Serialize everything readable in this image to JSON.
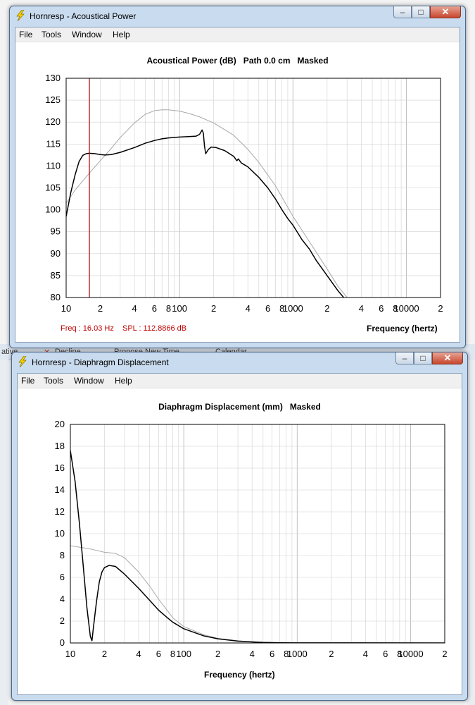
{
  "background": {
    "strip": [
      "ative",
      "Decline",
      "Propose New Time",
      "Calendar"
    ]
  },
  "colors": {
    "marker": "#b00000",
    "readout": "#c00000",
    "measured": "#000000",
    "reference": "#a8a8a8",
    "grid": "#d0d0d0"
  },
  "windows": [
    {
      "title": "Hornresp - Acoustical Power",
      "menu": [
        "File",
        "Tools",
        "Window",
        "Help"
      ],
      "chart_title": "Acoustical Power (dB)   Path 0.0 cm   Masked",
      "readout_freq": "Freq : 16.03 Hz",
      "readout_spl": "SPL : 112.8866 dB",
      "xlabel": "Frequency (hertz)"
    },
    {
      "title": "Hornresp - Diaphragm Displacement",
      "menu": [
        "File",
        "Tools",
        "Window",
        "Help"
      ],
      "chart_title": "Diaphragm Displacement (mm)   Masked",
      "xlabel": "Frequency (hertz)"
    }
  ],
  "chart_data": [
    {
      "type": "line",
      "title": "Acoustical Power (dB)   Path 0.0 cm   Masked",
      "xlabel": "Frequency (hertz)",
      "ylabel": "",
      "xscale": "log",
      "xlim": [
        10,
        20000
      ],
      "ylim": [
        80,
        130
      ],
      "yticks": [
        80,
        85,
        90,
        95,
        100,
        105,
        110,
        115,
        120,
        125,
        130
      ],
      "xtick_values": [
        10,
        20,
        40,
        60,
        80,
        100,
        200,
        400,
        600,
        800,
        1000,
        2000,
        4000,
        6000,
        8000,
        10000,
        20000
      ],
      "xtick_labels": [
        "10",
        "2",
        "4",
        "6",
        "8",
        "100",
        "2",
        "4",
        "6",
        "8",
        "1000",
        "2",
        "4",
        "6",
        "8",
        "10000",
        "2"
      ],
      "grid": true,
      "marker_x": 16.03,
      "series": [
        {
          "style": "black",
          "points": [
            [
              10,
              98.5
            ],
            [
              11,
              104
            ],
            [
              12,
              108
            ],
            [
              13,
              111
            ],
            [
              14,
              112.4
            ],
            [
              15,
              112.8
            ],
            [
              16,
              112.9
            ],
            [
              18,
              112.8
            ],
            [
              20,
              112.6
            ],
            [
              22,
              112.5
            ],
            [
              25,
              112.6
            ],
            [
              30,
              113.1
            ],
            [
              40,
              114.2
            ],
            [
              50,
              115.2
            ],
            [
              60,
              115.8
            ],
            [
              70,
              116.2
            ],
            [
              80,
              116.4
            ],
            [
              100,
              116.6
            ],
            [
              120,
              116.7
            ],
            [
              140,
              116.8
            ],
            [
              150,
              117.2
            ],
            [
              158,
              118.2
            ],
            [
              162,
              117.5
            ],
            [
              166,
              114.5
            ],
            [
              170,
              112.8
            ],
            [
              180,
              113.8
            ],
            [
              190,
              114.3
            ],
            [
              210,
              114.2
            ],
            [
              250,
              113.5
            ],
            [
              300,
              112.2
            ],
            [
              320,
              111.2
            ],
            [
              330,
              111.6
            ],
            [
              350,
              110.7
            ],
            [
              400,
              109.8
            ],
            [
              500,
              107.4
            ],
            [
              600,
              105
            ],
            [
              700,
              102.5
            ],
            [
              800,
              100
            ],
            [
              900,
              98
            ],
            [
              1000,
              96.5
            ],
            [
              1200,
              93.2
            ],
            [
              1400,
              91
            ],
            [
              1600,
              88.5
            ],
            [
              2000,
              85
            ],
            [
              2500,
              81.5
            ],
            [
              2800,
              80
            ]
          ]
        },
        {
          "style": "gray",
          "points": [
            [
              10,
              101.5
            ],
            [
              12,
              104.5
            ],
            [
              15,
              107.5
            ],
            [
              20,
              111.2
            ],
            [
              25,
              114
            ],
            [
              30,
              116.5
            ],
            [
              40,
              119.8
            ],
            [
              50,
              121.8
            ],
            [
              60,
              122.6
            ],
            [
              70,
              122.8
            ],
            [
              80,
              122.8
            ],
            [
              100,
              122.5
            ],
            [
              120,
              122
            ],
            [
              150,
              121.2
            ],
            [
              200,
              119.8
            ],
            [
              300,
              117
            ],
            [
              400,
              113.8
            ],
            [
              500,
              110.8
            ],
            [
              700,
              105.5
            ],
            [
              1000,
              98.5
            ],
            [
              1500,
              91.5
            ],
            [
              2000,
              86.5
            ],
            [
              2500,
              82.5
            ],
            [
              3000,
              80
            ]
          ]
        }
      ]
    },
    {
      "type": "line",
      "title": "Diaphragm Displacement (mm)   Masked",
      "xlabel": "Frequency (hertz)",
      "ylabel": "",
      "xscale": "log",
      "xlim": [
        10,
        20000
      ],
      "ylim": [
        0,
        20
      ],
      "yticks": [
        0,
        2,
        4,
        6,
        8,
        10,
        12,
        14,
        16,
        18,
        20
      ],
      "xtick_values": [
        10,
        20,
        40,
        60,
        80,
        100,
        200,
        400,
        600,
        800,
        1000,
        2000,
        4000,
        6000,
        8000,
        10000,
        20000
      ],
      "xtick_labels": [
        "10",
        "2",
        "4",
        "6",
        "8",
        "100",
        "2",
        "4",
        "6",
        "8",
        "1000",
        "2",
        "4",
        "6",
        "8",
        "10000",
        "2"
      ],
      "grid": true,
      "series": [
        {
          "style": "black",
          "points": [
            [
              10,
              17.6
            ],
            [
              11,
              14.8
            ],
            [
              12,
              11
            ],
            [
              13,
              7
            ],
            [
              14,
              3.2
            ],
            [
              15,
              0.6
            ],
            [
              15.5,
              0.2
            ],
            [
              16,
              1.5
            ],
            [
              17,
              3.8
            ],
            [
              18,
              5.6
            ],
            [
              19,
              6.5
            ],
            [
              20,
              6.9
            ],
            [
              22,
              7.1
            ],
            [
              25,
              7
            ],
            [
              30,
              6.3
            ],
            [
              40,
              5
            ],
            [
              50,
              3.9
            ],
            [
              60,
              3
            ],
            [
              70,
              2.4
            ],
            [
              80,
              1.9
            ],
            [
              100,
              1.3
            ],
            [
              150,
              0.65
            ],
            [
              200,
              0.38
            ],
            [
              300,
              0.17
            ],
            [
              400,
              0.1
            ],
            [
              500,
              0.05
            ],
            [
              700,
              0.02
            ],
            [
              1000,
              0.01
            ],
            [
              20000,
              0
            ]
          ]
        },
        {
          "style": "gray",
          "points": [
            [
              10,
              8.9
            ],
            [
              15,
              8.6
            ],
            [
              20,
              8.3
            ],
            [
              25,
              8.2
            ],
            [
              30,
              7.8
            ],
            [
              40,
              6.5
            ],
            [
              50,
              5.2
            ],
            [
              60,
              4
            ],
            [
              70,
              3.1
            ],
            [
              80,
              2.3
            ],
            [
              100,
              1.5
            ],
            [
              150,
              0.75
            ],
            [
              200,
              0.42
            ],
            [
              300,
              0.2
            ],
            [
              400,
              0.1
            ],
            [
              500,
              0.05
            ],
            [
              700,
              0.02
            ],
            [
              1000,
              0.01
            ],
            [
              20000,
              0
            ]
          ]
        }
      ]
    }
  ]
}
